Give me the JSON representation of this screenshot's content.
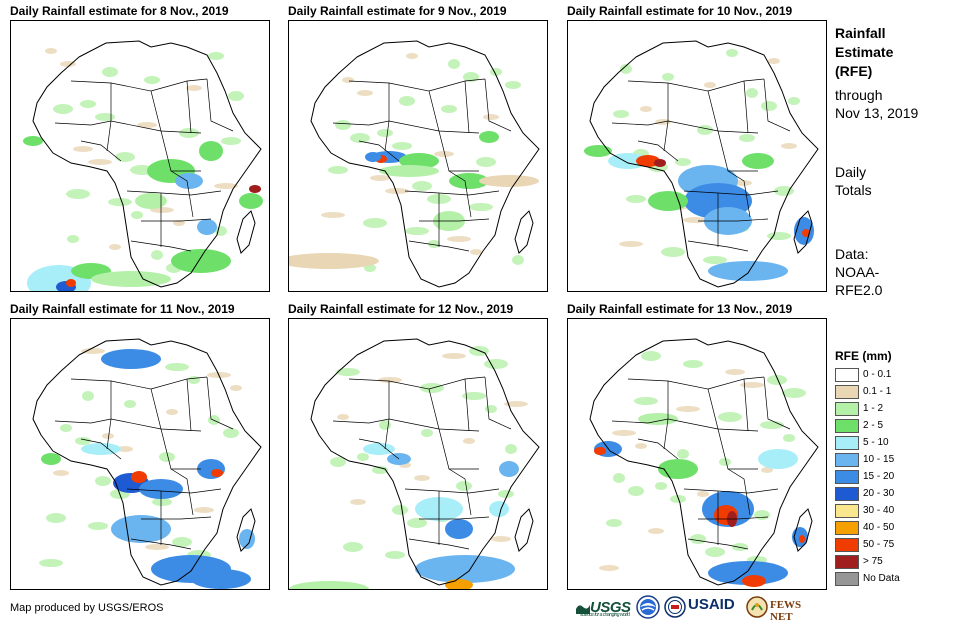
{
  "panels": [
    {
      "title": "Daily Rainfall estimate for 8 Nov., 2019"
    },
    {
      "title": "Daily Rainfall estimate for 9 Nov., 2019"
    },
    {
      "title": "Daily Rainfall estimate for 10 Nov., 2019"
    },
    {
      "title": "Daily Rainfall estimate for 11 Nov., 2019"
    },
    {
      "title": "Daily Rainfall estimate for 12 Nov., 2019"
    },
    {
      "title": "Daily Rainfall estimate for 13 Nov., 2019"
    }
  ],
  "side": {
    "heading1": "Rainfall",
    "heading2": "Estimate",
    "heading3": "(RFE)",
    "through1": "through",
    "through2": "Nov 13, 2019",
    "daily1": "Daily",
    "daily2": "Totals",
    "data1": "Data:",
    "data2": "NOAA-",
    "data3": "RFE2.0"
  },
  "legend": {
    "title": "RFE (mm)",
    "items": [
      {
        "label": "0 - 0.1",
        "color": "#ffffff"
      },
      {
        "label": "0.1 - 1",
        "color": "#e8d6b4"
      },
      {
        "label": "1 - 2",
        "color": "#b4f0a8"
      },
      {
        "label": "2 - 5",
        "color": "#6ee06a"
      },
      {
        "label": "5 - 10",
        "color": "#a8eef8"
      },
      {
        "label": "10 - 15",
        "color": "#6ab4f0"
      },
      {
        "label": "15 - 20",
        "color": "#3c8ce6"
      },
      {
        "label": "20 - 30",
        "color": "#1e5ad2"
      },
      {
        "label": "30 - 40",
        "color": "#fae68c"
      },
      {
        "label": "40 - 50",
        "color": "#f5a000"
      },
      {
        "label": "50 - 75",
        "color": "#f03c00"
      },
      {
        "label": "> 75",
        "color": "#a01e1e"
      },
      {
        "label": "No Data",
        "color": "#969696"
      }
    ]
  },
  "credit": "Map produced by USGS/EROS",
  "logos": {
    "usgs": "USGS",
    "usgs_tagline": "science for a changing world",
    "usaid": "USAID",
    "fews": "FEWS NET"
  }
}
